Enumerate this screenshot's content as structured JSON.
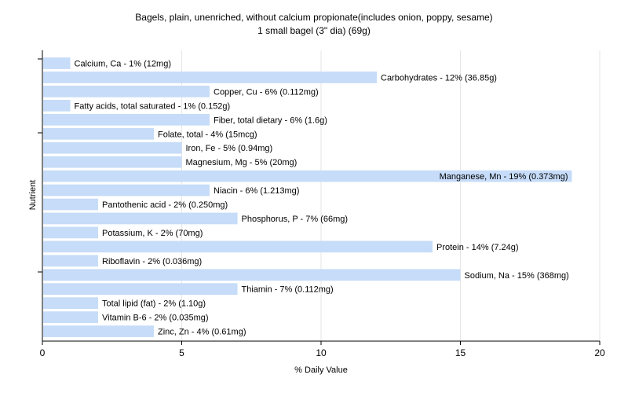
{
  "chart_data": {
    "type": "bar",
    "orientation": "horizontal",
    "title": "Bagels, plain, unenriched, without calcium propionate(includes onion, poppy, sesame)",
    "subtitle": "1 small bagel (3\" dia) (69g)",
    "xlabel": "% Daily Value",
    "ylabel": "Nutrient",
    "xlim": [
      0,
      20
    ],
    "xticks": [
      "0",
      "5",
      "10",
      "15",
      "20"
    ],
    "grid": true,
    "bar_color": "#c6dcf8",
    "categories": [
      "Calcium, Ca",
      "Carbohydrates",
      "Copper, Cu",
      "Fatty acids, total saturated",
      "Fiber, total dietary",
      "Folate, total",
      "Iron, Fe",
      "Magnesium, Mg",
      "Manganese, Mn",
      "Niacin",
      "Pantothenic acid",
      "Phosphorus, P",
      "Potassium, K",
      "Protein",
      "Riboflavin",
      "Sodium, Na",
      "Thiamin",
      "Total lipid (fat)",
      "Vitamin B-6",
      "Zinc, Zn"
    ],
    "values": [
      1,
      12,
      6,
      1,
      6,
      4,
      5,
      5,
      19,
      6,
      2,
      7,
      2,
      14,
      2,
      15,
      7,
      2,
      2,
      4
    ],
    "labels": [
      "Calcium, Ca - 1% (12mg)",
      "Carbohydrates - 12% (36.85g)",
      "Copper, Cu - 6% (0.112mg)",
      "Fatty acids, total saturated - 1% (0.152g)",
      "Fiber, total dietary - 6% (1.6g)",
      "Folate, total - 4% (15mcg)",
      "Iron, Fe - 5% (0.94mg)",
      "Magnesium, Mg - 5% (20mg)",
      "Manganese, Mn - 19% (0.373mg)",
      "Niacin - 6% (1.213mg)",
      "Pantothenic acid - 2% (0.250mg)",
      "Phosphorus, P - 7% (66mg)",
      "Potassium, K - 2% (70mg)",
      "Protein - 14% (7.24g)",
      "Riboflavin - 2% (0.036mg)",
      "Sodium, Na - 15% (368mg)",
      "Thiamin - 7% (0.112mg)",
      "Total lipid (fat) - 2% (1.10g)",
      "Vitamin B-6 - 2% (0.035mg)",
      "Zinc, Zn - 4% (0.61mg)"
    ]
  }
}
